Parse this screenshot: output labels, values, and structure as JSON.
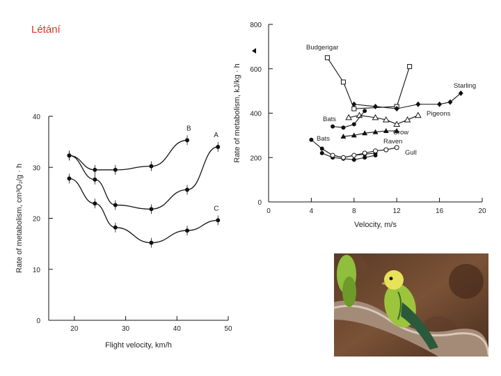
{
  "slide": {
    "title": "Létání"
  },
  "chart_data": [
    {
      "type": "line",
      "title": "",
      "xlabel": "Flight velocity, km/h",
      "ylabel": "Rate of metabolism, cm³O₂/g · h",
      "xlim": [
        15,
        50
      ],
      "ylim": [
        0,
        40
      ],
      "xticks": [
        20,
        30,
        40,
        50
      ],
      "yticks": [
        0,
        10,
        20,
        30,
        40
      ],
      "grid": false,
      "series": [
        {
          "name": "B",
          "x": [
            19,
            24,
            28,
            35,
            42
          ],
          "y": [
            32.3,
            29.5,
            29.5,
            30.2,
            35.3
          ],
          "marker": "filled-circle"
        },
        {
          "name": "A",
          "x": [
            19,
            24,
            28,
            35,
            42,
            48
          ],
          "y": [
            32.3,
            27.6,
            22.6,
            21.8,
            25.6,
            34.0
          ],
          "marker": "filled-circle"
        },
        {
          "name": "C",
          "x": [
            19,
            24,
            28,
            35,
            42,
            48
          ],
          "y": [
            27.8,
            22.9,
            18.2,
            15.2,
            17.6,
            19.6
          ],
          "marker": "filled-circle"
        }
      ]
    },
    {
      "type": "line",
      "title": "",
      "xlabel": "Velocity, m/s",
      "ylabel": "Rate of metabolism, kJ/kg · h",
      "xlim": [
        0,
        20
      ],
      "ylim": [
        0,
        800
      ],
      "xticks": [
        0,
        4,
        8,
        12,
        16,
        20
      ],
      "yticks": [
        0,
        200,
        400,
        600,
        800
      ],
      "grid": false,
      "series": [
        {
          "name": "Budgerigar",
          "x": [
            5.5,
            7,
            8,
            12,
            13.2
          ],
          "y": [
            650,
            540,
            420,
            430,
            610
          ],
          "marker": "open-square"
        },
        {
          "name": "Starling",
          "x": [
            8,
            10,
            12,
            14,
            16,
            17,
            18
          ],
          "y": [
            440,
            430,
            420,
            440,
            440,
            450,
            490
          ],
          "marker": "filled-diamond"
        },
        {
          "name": "Pigeons",
          "x": [
            7.5,
            8.5,
            10,
            11,
            12,
            13,
            14
          ],
          "y": [
            380,
            390,
            380,
            370,
            350,
            370,
            390
          ],
          "marker": "open-triangle"
        },
        {
          "name": "Bats",
          "x": [
            6,
            7,
            8,
            9
          ],
          "y": [
            340,
            335,
            350,
            410
          ],
          "marker": "filled-circle"
        },
        {
          "name": "Crow",
          "x": [
            7,
            8,
            9,
            10,
            11,
            12
          ],
          "y": [
            295,
            300,
            310,
            315,
            320,
            320
          ],
          "marker": "filled-triangle"
        },
        {
          "name": "Bats",
          "x": [
            4,
            5,
            6,
            7,
            8,
            9,
            10
          ],
          "y": [
            280,
            240,
            210,
            200,
            210,
            215,
            220
          ],
          "marker": "filled-circle"
        },
        {
          "name": "Raven",
          "x": [
            5,
            6,
            7,
            8,
            9,
            10
          ],
          "y": [
            220,
            200,
            195,
            190,
            200,
            210
          ],
          "marker": "filled-circle"
        },
        {
          "name": "Gull",
          "x": [
            6,
            7,
            8,
            9,
            10,
            11,
            12
          ],
          "y": [
            210,
            200,
            210,
            220,
            230,
            235,
            245
          ],
          "marker": "open-circle"
        }
      ]
    }
  ]
}
